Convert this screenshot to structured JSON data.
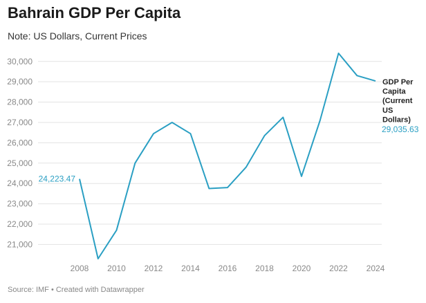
{
  "chart_data": {
    "type": "line",
    "title": "Bahrain GDP Per Capita",
    "subtitle": "Note: US Dollars, Current Prices",
    "x": [
      2008,
      2009,
      2010,
      2011,
      2012,
      2013,
      2014,
      2015,
      2016,
      2017,
      2018,
      2019,
      2020,
      2021,
      2022,
      2023,
      2024
    ],
    "series": [
      {
        "name": "GDP Per Capita (Current US Dollars)",
        "name_lines": [
          "GDP Per",
          "Capita",
          "(Current",
          "US",
          "Dollars)"
        ],
        "color": "#2a9fc3",
        "values": [
          24223.47,
          20300,
          21700,
          25000,
          26450,
          27000,
          26450,
          23750,
          23800,
          24800,
          26350,
          27250,
          24350,
          27100,
          30400,
          29300,
          29035.63
        ]
      }
    ],
    "xticks": [
      2008,
      2010,
      2012,
      2014,
      2016,
      2018,
      2020,
      2022,
      2024
    ],
    "xtick_labels": [
      "2008",
      "2010",
      "2012",
      "2014",
      "2016",
      "2018",
      "2020",
      "2022",
      "2024"
    ],
    "yticks": [
      21000,
      22000,
      23000,
      24000,
      25000,
      26000,
      27000,
      28000,
      29000,
      30000
    ],
    "ytick_labels": [
      "21,000",
      "22,000",
      "23,000",
      "24,000",
      "25,000",
      "26,000",
      "27,000",
      "28,000",
      "29,000",
      "30,000"
    ],
    "xlim": [
      2008,
      2024
    ],
    "ylim": [
      20300,
      30400
    ],
    "grid": true,
    "start_label": "24,223.47",
    "end_label": "29,035.63",
    "source": "Source: IMF • Created with Datawrapper"
  }
}
